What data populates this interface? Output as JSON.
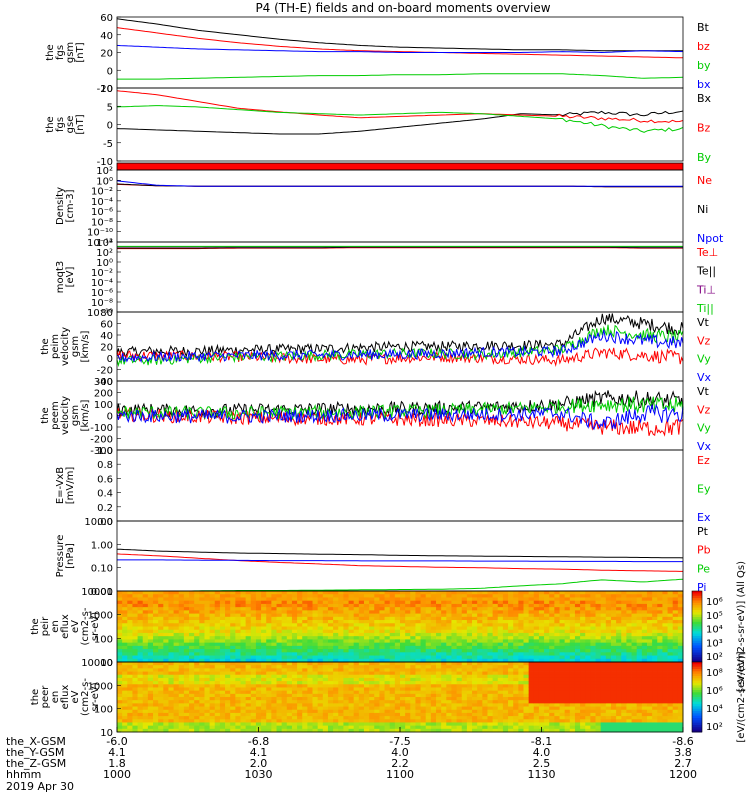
{
  "title": "P4 (TH-E) fields and on-board moments overview",
  "chart_data": {
    "type": "line",
    "x_ticks": [
      "1000",
      "1030",
      "1100",
      "1130",
      "1200"
    ],
    "panels": [
      {
        "id": "fgs_gsm",
        "ylabel": [
          "the",
          "fgs",
          "gsm",
          "[nT]"
        ],
        "ylim": [
          -20,
          60
        ],
        "ticks": [
          "60",
          "40",
          "20",
          "0",
          "-20"
        ],
        "series": [
          {
            "name": "Bt",
            "color": "#000000",
            "values": [
              58,
              52,
              45,
              40,
              35,
              31,
              28,
              26,
              25,
              24,
              23,
              23,
              22,
              22,
              22
            ]
          },
          {
            "name": "bz",
            "color": "#ff0000",
            "values": [
              48,
              42,
              36,
              31,
              27,
              24,
              22,
              21,
              20,
              19,
              18,
              17,
              16,
              15,
              14
            ]
          },
          {
            "name": "by",
            "color": "#00cc00",
            "values": [
              -10,
              -10,
              -9,
              -8,
              -7,
              -6,
              -6,
              -5,
              -5,
              -4,
              -4,
              -4,
              -6,
              -9,
              -8
            ]
          },
          {
            "name": "bx",
            "color": "#0000ff",
            "values": [
              28,
              26,
              24,
              23,
              22,
              21,
              21,
              20,
              20,
              20,
              20,
              21,
              20,
              22,
              21
            ]
          }
        ]
      },
      {
        "id": "fgs_gse",
        "ylabel": [
          "the",
          "fgs",
          "gse",
          "[nT]"
        ],
        "ylim": [
          -17,
          10
        ],
        "ticks": [
          "10",
          "5",
          "0",
          "-5",
          "-10"
        ],
        "series": [
          {
            "name": "Bx",
            "color": "#000000",
            "values": [
              -5,
              -5.5,
              -6,
              -6.5,
              -7,
              -7,
              -6,
              -4.5,
              -3,
              -1.5,
              0.5,
              0,
              1,
              0,
              1.5
            ]
          },
          {
            "name": "Bz",
            "color": "#ff0000",
            "values": [
              9,
              7.5,
              5,
              2.5,
              1.2,
              0,
              -1,
              -0.5,
              0,
              0.5,
              0,
              -0.5,
              -1.2,
              -2,
              -2.5
            ]
          },
          {
            "name": "By",
            "color": "#00cc00",
            "values": [
              3,
              3.5,
              3,
              2,
              1,
              0.5,
              0,
              0.5,
              1,
              0.5,
              -0.5,
              -1.5,
              -4,
              -6,
              -5
            ]
          }
        ]
      },
      {
        "id": "density",
        "ylabel": [
          "Density",
          "[cm-3]"
        ],
        "ylim": [
          -12,
          4
        ],
        "ticks": [
          "10²",
          "10⁰",
          "10⁻²",
          "10⁻⁴",
          "10⁻⁶",
          "10⁻⁸",
          "10⁻¹⁰",
          "10⁻¹²"
        ],
        "series": [
          {
            "name": "Ne",
            "color": "#ff0000",
            "values": [
              0.8,
              0.5,
              0.4,
              0.4,
              0.4,
              0.4,
              0.4,
              0.4,
              0.4,
              0.4,
              0.4,
              0.4,
              0.3,
              0.3,
              0.3
            ]
          },
          {
            "name": "Ni",
            "color": "#000000",
            "values": [
              0.9,
              0.5,
              0.4,
              0.4,
              0.4,
              0.4,
              0.4,
              0.4,
              0.4,
              0.4,
              0.4,
              0.4,
              0.3,
              0.3,
              0.3
            ]
          },
          {
            "name": "Npot",
            "color": "#0000ff",
            "values": [
              1.6,
              0.6,
              0.4,
              0.4,
              0.4,
              0.4,
              0.4,
              0.4,
              0.4,
              0.4,
              0.4,
              0.4,
              0.4,
              0.4,
              0.4
            ]
          }
        ]
      },
      {
        "id": "temperature",
        "ylabel": [
          "moqt3",
          "[eV]"
        ],
        "ylim": [
          -11,
          5
        ],
        "ticks": [
          "10⁴",
          "10²",
          "10⁰",
          "10⁻²",
          "10⁻⁴",
          "10⁻⁶",
          "10⁻⁸",
          "10⁻¹⁰"
        ],
        "series": [
          {
            "name": "Te⊥",
            "color": "#ff0000",
            "values": [
              3.5,
              3.5,
              3.5,
              3.6,
              3.6,
              3.6,
              3.7,
              3.7,
              3.7,
              3.7,
              3.7,
              3.7,
              3.7,
              3.6,
              3.6
            ]
          },
          {
            "name": "Te||",
            "color": "#000000",
            "values": [
              3.6,
              3.6,
              3.6,
              3.7,
              3.7,
              3.7,
              3.8,
              3.8,
              3.8,
              3.8,
              3.8,
              3.8,
              3.8,
              3.7,
              3.7
            ]
          },
          {
            "name": "Ti⊥",
            "color": "#800080",
            "values": [
              3.9,
              3.9,
              3.9,
              3.9,
              3.9,
              3.9,
              3.9,
              3.9,
              3.9,
              3.9,
              3.9,
              3.9,
              3.9,
              3.9,
              3.9
            ]
          },
          {
            "name": "Ti||",
            "color": "#00cc00",
            "values": [
              4.0,
              4.0,
              4.0,
              4.0,
              4.0,
              4.0,
              4.0,
              4.0,
              4.0,
              4.0,
              4.0,
              4.0,
              4.0,
              4.0,
              4.0
            ]
          }
        ]
      },
      {
        "id": "peim_velocity",
        "ylabel": [
          "the",
          "peim",
          "velocity",
          "gsm",
          "[km/s]"
        ],
        "ylim": [
          -40,
          80
        ],
        "ticks": [
          "80",
          "60",
          "40",
          "20",
          "0",
          "-20",
          "-40"
        ],
        "series": [
          {
            "name": "Vt",
            "color": "#000000",
            "values": [
              10,
              12,
              12,
              14,
              15,
              16,
              18,
              20,
              20,
              22,
              22,
              24,
              70,
              60,
              50
            ]
          },
          {
            "name": "Vz",
            "color": "#ff0000",
            "values": [
              5,
              4,
              3,
              2,
              0,
              -2,
              -3,
              0,
              2,
              0,
              -2,
              -4,
              10,
              5,
              0
            ]
          },
          {
            "name": "Vy",
            "color": "#00cc00",
            "values": [
              -5,
              -4,
              0,
              2,
              3,
              5,
              6,
              8,
              8,
              6,
              10,
              15,
              50,
              40,
              35
            ]
          },
          {
            "name": "Vx",
            "color": "#0000ff",
            "values": [
              0,
              2,
              3,
              4,
              5,
              5,
              6,
              6,
              8,
              10,
              10,
              12,
              40,
              30,
              25
            ]
          }
        ]
      },
      {
        "id": "peem_velocity",
        "ylabel": [
          "the",
          "peem",
          "velocity",
          "gsm",
          "[km/s]"
        ],
        "ylim": [
          -300,
          300
        ],
        "ticks": [
          "300",
          "200",
          "100",
          "0",
          "-100",
          "-200",
          "-300"
        ],
        "series": [
          {
            "name": "Vt",
            "color": "#000000",
            "values": [
              50,
              45,
              40,
              45,
              50,
              55,
              60,
              60,
              65,
              70,
              80,
              100,
              150,
              140,
              120
            ]
          },
          {
            "name": "Vz",
            "color": "#ff0000",
            "values": [
              10,
              0,
              -10,
              -20,
              -25,
              -25,
              -30,
              -35,
              -40,
              -45,
              -55,
              -70,
              -100,
              -110,
              -100
            ]
          },
          {
            "name": "Vy",
            "color": "#00cc00",
            "values": [
              30,
              25,
              20,
              20,
              25,
              25,
              30,
              35,
              40,
              50,
              60,
              80,
              100,
              90,
              80
            ]
          },
          {
            "name": "Vx",
            "color": "#0000ff",
            "values": [
              0,
              -5,
              -10,
              -10,
              -5,
              0,
              0,
              5,
              5,
              10,
              10,
              20,
              -80,
              20,
              10
            ]
          }
        ]
      },
      {
        "id": "efield",
        "ylabel": [
          "E=-VxB",
          "[mV/m]"
        ],
        "ylim": [
          0,
          1
        ],
        "ticks": [
          "1.0",
          "0.8",
          "0.6",
          "0.4",
          "0.2",
          "0.0"
        ],
        "series": [
          {
            "name": "Ez",
            "color": "#ff0000",
            "values": []
          },
          {
            "name": "Ey",
            "color": "#00cc00",
            "values": []
          },
          {
            "name": "Ex",
            "color": "#0000ff",
            "values": []
          }
        ]
      },
      {
        "id": "pressure",
        "ylabel": [
          "Pressure",
          "[nPa]"
        ],
        "ylim": [
          -1.5,
          1.2
        ],
        "log": true,
        "ticks": [
          "10.00",
          "1.00",
          "0.10",
          "0.01"
        ],
        "series": [
          {
            "name": "Pt",
            "color": "#000000",
            "values": [
              1.3,
              1.1,
              1.0,
              0.92,
              0.88,
              0.83,
              0.8,
              0.75,
              0.72,
              0.7,
              0.68,
              0.66,
              0.64,
              0.62,
              0.6
            ]
          },
          {
            "name": "Pb",
            "color": "#ff0000",
            "values": [
              0.85,
              0.72,
              0.58,
              0.47,
              0.4,
              0.35,
              0.3,
              0.28,
              0.26,
              0.25,
              0.23,
              0.22,
              0.2,
              0.19,
              0.18
            ]
          },
          {
            "name": "Pe",
            "color": "#00cc00",
            "values": [
              0.028,
              0.03,
              0.032,
              0.033,
              0.033,
              0.034,
              0.035,
              0.036,
              0.037,
              0.04,
              0.05,
              0.06,
              0.085,
              0.07,
              0.09
            ]
          },
          {
            "name": "Pi",
            "color": "#0000ff",
            "values": [
              0.5,
              0.5,
              0.49,
              0.48,
              0.47,
              0.47,
              0.46,
              0.46,
              0.46,
              0.45,
              0.45,
              0.44,
              0.44,
              0.43,
              0.43
            ]
          }
        ]
      },
      {
        "id": "peir_spectrogram",
        "type": "heatmap",
        "ylabel": [
          "the",
          "peir",
          "en",
          "eflux",
          "eV",
          "(cm2-s-",
          "sr-eV)"
        ],
        "ticks": [
          "10000",
          "1000",
          "100",
          "10"
        ],
        "colorbar_ticks": [
          "10⁶",
          "10⁵",
          "10⁴",
          "10³",
          "10²"
        ],
        "colorbar_label": "[eV/(cm2-s-sr-eV)] (All Qs)"
      },
      {
        "id": "peer_spectrogram",
        "type": "heatmap",
        "ylabel": [
          "the",
          "peer",
          "en",
          "eflux",
          "eV",
          "(cm2-s-",
          "sr-eV)"
        ],
        "ticks": [
          "10000",
          "1000",
          "100",
          "10"
        ],
        "colorbar_ticks": [
          "10⁸",
          "10⁶",
          "10⁴",
          "10²"
        ],
        "colorbar_label": "[eV/(cm2-s-sr-eV)]"
      }
    ],
    "ephemeris": [
      {
        "label": "the_X-GSM",
        "values": [
          "-6.0",
          "-6.8",
          "-7.5",
          "-8.1",
          "-8.6"
        ]
      },
      {
        "label": "the_Y-GSM",
        "values": [
          "4.1",
          "4.1",
          "4.0",
          "4.0",
          "3.8"
        ]
      },
      {
        "label": "the_Z-GSM",
        "values": [
          "1.8",
          "2.0",
          "2.2",
          "2.5",
          "2.7"
        ]
      },
      {
        "label": "hhmm",
        "values": [
          "1000",
          "1030",
          "1100",
          "1130",
          "1200"
        ]
      }
    ],
    "date_label": "2019 Apr 30"
  }
}
